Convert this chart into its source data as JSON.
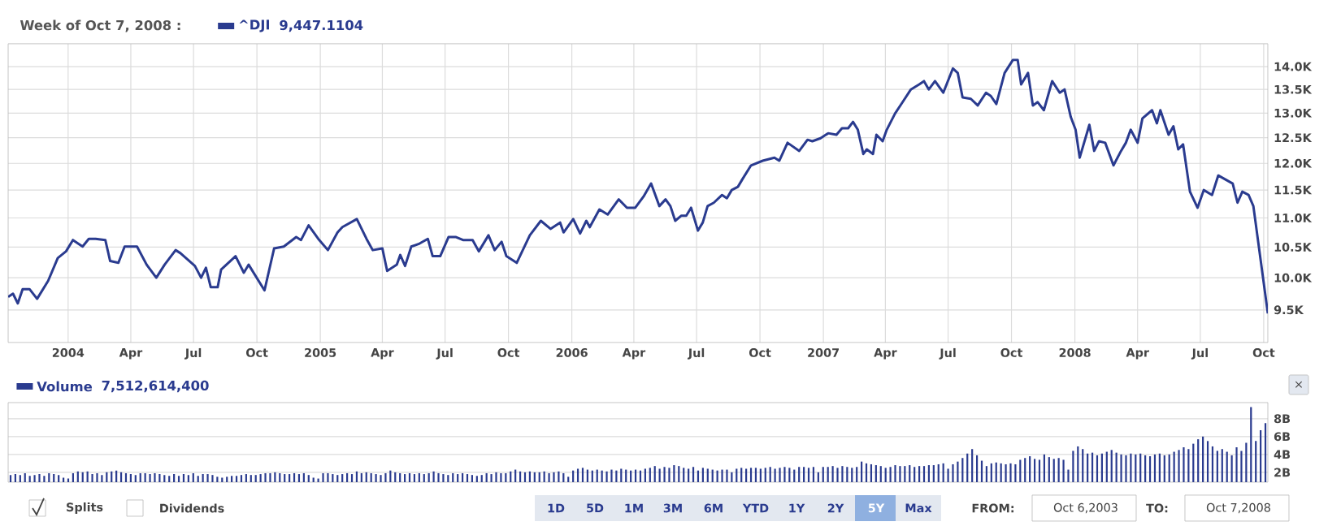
{
  "chart_data": [
    {
      "type": "line",
      "title": "Week of Oct 7, 2008 :",
      "log": true,
      "grid": true,
      "legend": "top left",
      "annotations": [
        "9,447.1104"
      ],
      "xlim": [
        "2003-10-06",
        "2008-10-07"
      ],
      "ylim": [
        9020,
        14520
      ],
      "xticks": [
        {
          "value": "2004-01-01",
          "label": "2004"
        },
        {
          "value": "2004-04-01",
          "label": "Apr"
        },
        {
          "value": "2004-07-01",
          "label": "Jul"
        },
        {
          "value": "2004-10-01",
          "label": "Oct"
        },
        {
          "value": "2005-01-01",
          "label": "2005"
        },
        {
          "value": "2005-04-01",
          "label": "Apr"
        },
        {
          "value": "2005-07-01",
          "label": "Jul"
        },
        {
          "value": "2005-10-01",
          "label": "Oct"
        },
        {
          "value": "2006-01-01",
          "label": "2006"
        },
        {
          "value": "2006-04-01",
          "label": "Apr"
        },
        {
          "value": "2006-07-01",
          "label": "Jul"
        },
        {
          "value": "2006-10-01",
          "label": "Oct"
        },
        {
          "value": "2007-01-01",
          "label": "2007"
        },
        {
          "value": "2007-04-01",
          "label": "Apr"
        },
        {
          "value": "2007-07-01",
          "label": "Jul"
        },
        {
          "value": "2007-10-01",
          "label": "Oct"
        },
        {
          "value": "2008-01-01",
          "label": "2008"
        },
        {
          "value": "2008-04-01",
          "label": "Apr"
        },
        {
          "value": "2008-07-01",
          "label": "Jul"
        },
        {
          "value": "2008-10-01",
          "label": "Oct"
        }
      ],
      "yticks": [
        {
          "value": 9500,
          "label": "9.5K"
        },
        {
          "value": 10000,
          "label": "10.0K"
        },
        {
          "value": 10500,
          "label": "10.5K"
        },
        {
          "value": 11000,
          "label": "11.0K"
        },
        {
          "value": 11500,
          "label": "11.5K"
        },
        {
          "value": 12000,
          "label": "12.0K"
        },
        {
          "value": 12500,
          "label": "12.5K"
        },
        {
          "value": 13000,
          "label": "13.0K"
        },
        {
          "value": 13500,
          "label": "13.5K"
        },
        {
          "value": 14000,
          "label": "14.0K"
        }
      ],
      "series": [
        {
          "name": "^DJI",
          "color": "#2a3b8f",
          "x": [
            "2003-10-06",
            "2003-10-13",
            "2003-10-20",
            "2003-10-27",
            "2003-11-06",
            "2003-11-17",
            "2003-12-03",
            "2003-12-17",
            "2003-12-29",
            "2004-01-08",
            "2004-01-22",
            "2004-01-31",
            "2004-02-10",
            "2004-02-24",
            "2004-03-02",
            "2004-03-14",
            "2004-03-23",
            "2004-04-10",
            "2004-04-24",
            "2004-05-08",
            "2004-05-20",
            "2004-06-05",
            "2004-06-12",
            "2004-07-03",
            "2004-07-12",
            "2004-07-19",
            "2004-07-26",
            "2004-08-05",
            "2004-08-10",
            "2004-08-31",
            "2004-09-12",
            "2004-09-19",
            "2004-10-12",
            "2004-10-26",
            "2004-11-09",
            "2004-11-27",
            "2004-12-04",
            "2004-12-15",
            "2004-12-29",
            "2005-01-12",
            "2005-01-26",
            "2005-02-02",
            "2005-02-23",
            "2005-03-09",
            "2005-03-18",
            "2005-04-01",
            "2005-04-08",
            "2005-04-22",
            "2005-04-27",
            "2005-05-04",
            "2005-05-13",
            "2005-05-25",
            "2005-06-06",
            "2005-06-13",
            "2005-06-24",
            "2005-07-06",
            "2005-07-17",
            "2005-07-27",
            "2005-08-10",
            "2005-08-19",
            "2005-09-02",
            "2005-09-11",
            "2005-09-21",
            "2005-09-28",
            "2005-10-13",
            "2005-11-01",
            "2005-11-17",
            "2005-12-01",
            "2005-12-15",
            "2005-12-20",
            "2006-01-03",
            "2006-01-13",
            "2006-01-22",
            "2006-01-27",
            "2006-02-10",
            "2006-02-22",
            "2006-03-10",
            "2006-03-22",
            "2006-04-03",
            "2006-04-15",
            "2006-04-26",
            "2006-05-08",
            "2006-05-17",
            "2006-05-24",
            "2006-05-31",
            "2006-06-09",
            "2006-06-16",
            "2006-06-23",
            "2006-07-03",
            "2006-07-10",
            "2006-07-17",
            "2006-07-26",
            "2006-08-07",
            "2006-08-14",
            "2006-08-21",
            "2006-08-30",
            "2006-09-06",
            "2006-09-18",
            "2006-10-05",
            "2006-10-22",
            "2006-10-29",
            "2006-11-10",
            "2006-11-27",
            "2006-12-09",
            "2006-12-16",
            "2006-12-28",
            "2007-01-08",
            "2007-01-20",
            "2007-01-28",
            "2007-02-06",
            "2007-02-13",
            "2007-02-20",
            "2007-02-28",
            "2007-03-05",
            "2007-03-14",
            "2007-03-19",
            "2007-03-28",
            "2007-04-03",
            "2007-04-15",
            "2007-04-26",
            "2007-05-08",
            "2007-05-20",
            "2007-05-27",
            "2007-06-03",
            "2007-06-12",
            "2007-06-24",
            "2007-07-08",
            "2007-07-15",
            "2007-07-22",
            "2007-08-03",
            "2007-08-13",
            "2007-08-25",
            "2007-09-01",
            "2007-09-09",
            "2007-09-21",
            "2007-10-03",
            "2007-10-10",
            "2007-10-15",
            "2007-10-25",
            "2007-11-01",
            "2007-11-08",
            "2007-11-17",
            "2007-11-29",
            "2007-12-10",
            "2007-12-17",
            "2007-12-26",
            "2008-01-02",
            "2008-01-08",
            "2008-01-22",
            "2008-01-29",
            "2008-02-05",
            "2008-02-14",
            "2008-02-26",
            "2008-03-08",
            "2008-03-15",
            "2008-03-22",
            "2008-04-01",
            "2008-04-08",
            "2008-04-22",
            "2008-04-29",
            "2008-05-04",
            "2008-05-16",
            "2008-05-23",
            "2008-05-30",
            "2008-06-06",
            "2008-06-16",
            "2008-06-27",
            "2008-07-06",
            "2008-07-18",
            "2008-07-27",
            "2008-08-17",
            "2008-08-24",
            "2008-08-31",
            "2008-09-09",
            "2008-09-16",
            "2008-10-07"
          ],
          "values": [
            9700,
            9750,
            9600,
            9820,
            9820,
            9670,
            9950,
            10320,
            10430,
            10620,
            10510,
            10640,
            10640,
            10620,
            10270,
            10240,
            10510,
            10510,
            10210,
            10000,
            10210,
            10450,
            10400,
            10190,
            10000,
            10160,
            9850,
            9850,
            10130,
            10350,
            10080,
            10210,
            9800,
            10480,
            10510,
            10670,
            10620,
            10870,
            10640,
            10450,
            10750,
            10840,
            10980,
            10640,
            10450,
            10480,
            10110,
            10210,
            10370,
            10190,
            10510,
            10560,
            10640,
            10350,
            10350,
            10670,
            10670,
            10620,
            10620,
            10430,
            10700,
            10450,
            10590,
            10350,
            10240,
            10700,
            10950,
            10810,
            10920,
            10750,
            10980,
            10730,
            10950,
            10840,
            11150,
            11060,
            11330,
            11180,
            11180,
            11380,
            11620,
            11210,
            11330,
            11210,
            10950,
            11040,
            11040,
            11180,
            10780,
            10920,
            11210,
            11270,
            11410,
            11350,
            11500,
            11560,
            11710,
            11960,
            12050,
            12110,
            12050,
            12400,
            12240,
            12460,
            12430,
            12490,
            12590,
            12560,
            12690,
            12690,
            12820,
            12660,
            12180,
            12270,
            12180,
            12560,
            12430,
            12660,
            12990,
            13230,
            13500,
            13610,
            13680,
            13500,
            13680,
            13430,
            13960,
            13860,
            13330,
            13300,
            13160,
            13430,
            13360,
            13190,
            13860,
            14150,
            14150,
            13610,
            13860,
            13160,
            13230,
            13060,
            13680,
            13430,
            13500,
            12920,
            12660,
            12110,
            12760,
            12240,
            12430,
            12400,
            11960,
            12240,
            12400,
            12660,
            12400,
            12890,
            13060,
            12790,
            13060,
            12560,
            12730,
            12270,
            12370,
            11470,
            11180,
            11500,
            11410,
            11770,
            11620,
            11270,
            11470,
            11410,
            11210,
            9447.1104
          ]
        }
      ]
    },
    {
      "type": "bar",
      "grid": "y",
      "legend": "top left",
      "annotations": [
        "7,512,614,400"
      ],
      "categories": [
        null,
        null,
        null,
        null,
        null,
        null,
        null,
        null,
        null,
        null,
        null,
        null,
        null,
        null,
        null,
        null,
        null,
        null,
        null,
        null,
        null,
        null,
        null,
        null,
        null,
        null,
        null,
        null,
        null,
        null,
        null,
        null,
        null,
        null,
        null,
        null,
        null,
        null,
        null,
        null,
        null,
        null,
        null,
        null,
        null,
        null,
        null,
        null,
        null,
        null,
        null,
        null,
        null,
        null,
        null,
        null,
        null,
        null,
        null,
        null,
        null,
        null,
        null,
        null,
        null,
        null,
        null,
        null,
        null,
        null,
        null,
        null,
        null,
        null,
        null,
        null,
        null,
        null,
        null,
        null,
        null,
        null,
        null,
        null,
        null,
        null,
        null,
        null,
        null,
        null,
        null,
        null,
        null,
        null,
        null,
        null,
        null,
        null,
        null,
        null,
        null,
        null,
        null,
        null,
        null,
        null,
        null,
        null,
        null,
        null,
        null,
        null,
        null,
        null,
        null,
        null,
        null,
        null,
        null,
        null,
        null,
        null,
        null,
        null,
        null,
        null,
        null,
        null,
        null,
        null,
        null,
        null,
        null,
        null,
        null,
        null,
        null,
        null,
        null,
        null,
        null,
        null,
        null,
        null,
        null,
        null,
        null,
        null,
        null,
        null,
        null,
        null,
        null,
        null,
        null,
        null,
        null,
        null,
        null,
        null,
        null,
        null,
        null,
        null,
        null,
        null,
        null,
        null,
        null,
        null,
        null,
        null,
        null,
        null,
        null,
        null,
        null,
        null,
        null,
        null,
        null,
        null,
        null,
        null,
        null,
        null,
        null,
        null,
        null,
        null,
        null,
        null,
        null,
        null,
        null,
        null,
        null,
        null,
        null,
        null,
        null,
        null,
        null,
        null,
        null,
        null,
        null,
        null,
        null,
        null,
        null,
        null,
        null,
        null,
        null,
        null,
        null,
        null,
        null,
        null,
        null,
        null,
        null,
        null,
        null,
        null,
        null,
        null,
        null,
        null,
        null,
        null,
        null,
        null,
        null,
        null,
        null,
        null,
        null,
        null,
        null,
        null,
        null,
        null,
        null,
        null,
        null,
        null,
        null,
        null,
        null,
        null,
        null,
        null,
        null,
        null,
        null,
        null,
        null,
        null,
        null,
        null
      ],
      "ylim": [
        0.9,
        9.8
      ],
      "yticks": [
        {
          "value": 2,
          "label": "2B"
        },
        {
          "value": 4,
          "label": "4B"
        },
        {
          "value": 6,
          "label": "6B"
        },
        {
          "value": 8,
          "label": "8B"
        }
      ],
      "series": [
        {
          "name": "Volume",
          "color": "#2a3b8f",
          "values": [
            1.7,
            1.8,
            1.7,
            1.9,
            1.6,
            1.7,
            1.8,
            1.6,
            1.9,
            1.8,
            1.7,
            1.4,
            1.3,
            1.9,
            2.1,
            2.0,
            2.1,
            1.8,
            1.9,
            1.7,
            2.0,
            2.1,
            2.2,
            2.0,
            1.9,
            1.8,
            1.7,
            1.9,
            1.9,
            1.8,
            1.9,
            1.8,
            1.7,
            1.6,
            1.8,
            1.6,
            1.8,
            1.7,
            1.9,
            1.6,
            1.8,
            1.8,
            1.7,
            1.5,
            1.4,
            1.5,
            1.6,
            1.6,
            1.7,
            1.8,
            1.7,
            1.7,
            1.8,
            1.9,
            1.9,
            2.0,
            1.9,
            1.8,
            1.8,
            1.9,
            1.8,
            1.9,
            1.7,
            1.4,
            1.3,
            1.9,
            1.9,
            1.8,
            1.7,
            1.8,
            1.9,
            1.8,
            2.1,
            1.9,
            2.0,
            1.9,
            1.8,
            1.7,
            1.9,
            2.2,
            2.0,
            1.9,
            1.8,
            1.9,
            1.8,
            1.9,
            1.8,
            1.9,
            2.1,
            1.9,
            1.8,
            1.7,
            1.9,
            1.8,
            1.9,
            1.8,
            1.7,
            1.6,
            1.7,
            1.9,
            1.8,
            2.0,
            1.9,
            1.9,
            2.1,
            2.3,
            2.1,
            2.0,
            2.1,
            2.0,
            2.0,
            2.1,
            1.9,
            2.0,
            2.1,
            1.9,
            1.5,
            2.2,
            2.4,
            2.5,
            2.3,
            2.2,
            2.3,
            2.2,
            2.1,
            2.3,
            2.2,
            2.4,
            2.3,
            2.2,
            2.3,
            2.2,
            2.4,
            2.5,
            2.7,
            2.4,
            2.6,
            2.5,
            2.8,
            2.7,
            2.5,
            2.4,
            2.6,
            2.2,
            2.5,
            2.4,
            2.3,
            2.2,
            2.3,
            2.3,
            2.0,
            2.4,
            2.5,
            2.4,
            2.5,
            2.5,
            2.4,
            2.5,
            2.6,
            2.4,
            2.5,
            2.6,
            2.5,
            2.3,
            2.6,
            2.6,
            2.5,
            2.6,
            2.0,
            2.6,
            2.6,
            2.7,
            2.5,
            2.7,
            2.6,
            2.5,
            2.6,
            3.2,
            3.0,
            2.9,
            2.8,
            2.7,
            2.5,
            2.6,
            2.8,
            2.7,
            2.7,
            2.8,
            2.6,
            2.7,
            2.7,
            2.8,
            2.8,
            2.9,
            3.0,
            2.4,
            2.9,
            3.2,
            3.6,
            4.1,
            4.6,
            3.9,
            3.3,
            2.7,
            3.0,
            3.1,
            3.0,
            2.9,
            3.0,
            2.9,
            3.4,
            3.6,
            3.8,
            3.5,
            3.4,
            4.0,
            3.7,
            3.5,
            3.6,
            3.4,
            2.3,
            4.4,
            4.9,
            4.6,
            4.1,
            4.2,
            3.9,
            4.1,
            4.3,
            4.5,
            4.2,
            4.0,
            3.9,
            4.1,
            4.0,
            4.1,
            3.9,
            3.8,
            4.0,
            4.1,
            3.9,
            4.0,
            4.3,
            4.5,
            4.8,
            4.6,
            5.2,
            5.7,
            6.0,
            5.5,
            4.9,
            4.4,
            4.6,
            4.3,
            3.9,
            4.8,
            4.4,
            5.3,
            9.3,
            5.5,
            6.7,
            7.5
          ]
        }
      ]
    },
    {
      "type": "other",
      "annotations": [
        "Splits",
        "Dividends",
        "1D",
        "5D",
        "1M",
        "3M",
        "6M",
        "YTD",
        "1Y",
        "2Y",
        "5Y",
        "Max",
        "FROM:",
        "Oct 6,2003",
        "TO:",
        "Oct 7,2008",
        "×"
      ]
    }
  ]
}
